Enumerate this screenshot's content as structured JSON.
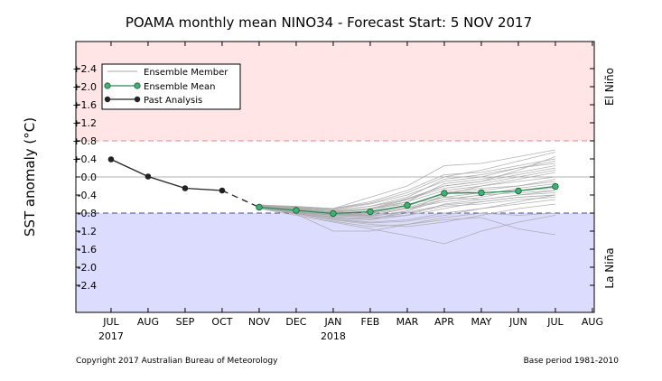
{
  "chart_data": {
    "type": "line",
    "title": "POAMA monthly mean NINO34 - Forecast Start: 5 NOV 2017",
    "ylabel": "SST anomaly (°C)",
    "xlabel": "",
    "ylim": [
      -3.0,
      3.0
    ],
    "xlim": [
      -0.95,
      13.05
    ],
    "months": [
      "JUL",
      "AUG",
      "SEP",
      "OCT",
      "NOV",
      "DEC",
      "JAN",
      "FEB",
      "MAR",
      "APR",
      "MAY",
      "JUN",
      "JUL",
      "AUG"
    ],
    "year_labels": [
      {
        "index": 0,
        "label": "2017"
      },
      {
        "index": 6,
        "label": "2018"
      }
    ],
    "yticks": [
      2.4,
      2.0,
      1.6,
      1.2,
      0.8,
      0.4,
      0.0,
      -0.4,
      -0.8,
      -1.2,
      -1.6,
      -2.0,
      -2.4
    ],
    "ytick_labels": [
      "+2.4",
      "+2.0",
      "+1.6",
      "+1.2",
      "+0.8",
      "+0.4",
      "0.0",
      "-0.4",
      "-0.8",
      "-1.2",
      "-1.6",
      "-2.0",
      "-2.4"
    ],
    "thresholds": {
      "el_nino": 0.8,
      "la_nina": -0.8
    },
    "regions": {
      "el_nino_label": "El Niño",
      "la_nina_label": "La Niña"
    },
    "colors": {
      "el_nino_fill": "#ffe5e5",
      "la_nina_fill": "#dcdcfe",
      "el_nino_line": "#e88a8a",
      "la_nina_line": "#4a4a9a",
      "ensemble_member": "#aaaaaa",
      "ensemble_mean": "#2e8b57",
      "ensemble_mean_marker": "#3cb371",
      "past_analysis": "#222222"
    },
    "legend": {
      "placement": "top-left",
      "entries": [
        "Ensemble Member",
        "Ensemble Mean",
        "Past Analysis"
      ]
    },
    "series": [
      {
        "name": "Past Analysis",
        "x": [
          0,
          1,
          2,
          3
        ],
        "values": [
          0.39,
          0.01,
          -0.25,
          -0.3
        ]
      },
      {
        "name": "Ensemble Mean",
        "x": [
          4,
          5,
          6,
          7,
          8,
          9,
          10,
          11,
          12
        ],
        "values": [
          -0.67,
          -0.74,
          -0.81,
          -0.77,
          -0.63,
          -0.36,
          -0.35,
          -0.31,
          -0.21
        ]
      }
    ],
    "ensemble_members": [
      [
        -0.65,
        -0.72,
        -0.8,
        -0.85,
        -0.7,
        -0.5,
        -0.4,
        -0.35,
        -0.3
      ],
      [
        -0.68,
        -0.8,
        -0.95,
        -1.05,
        -1.1,
        -1.0,
        -0.85,
        -0.7,
        -0.6
      ],
      [
        -0.62,
        -0.65,
        -0.7,
        -0.55,
        -0.3,
        0.05,
        0.1,
        0.25,
        0.4
      ],
      [
        -0.7,
        -0.85,
        -1.0,
        -1.15,
        -1.3,
        -1.48,
        -1.2,
        -1.0,
        -0.85
      ],
      [
        -0.66,
        -0.75,
        -0.9,
        -0.95,
        -0.75,
        -0.4,
        -0.2,
        -0.05,
        0.1
      ],
      [
        -0.64,
        -0.7,
        -0.75,
        -0.65,
        -0.5,
        -0.2,
        -0.1,
        0.05,
        0.2
      ],
      [
        -0.69,
        -0.78,
        -0.85,
        -0.9,
        -0.85,
        -0.7,
        -0.55,
        -0.45,
        -0.4
      ],
      [
        -0.63,
        -0.68,
        -0.72,
        -0.6,
        -0.4,
        -0.1,
        0.0,
        0.2,
        0.35
      ],
      [
        -0.67,
        -0.82,
        -1.2,
        -1.2,
        -1.05,
        -0.9,
        -0.8,
        -0.85,
        -0.8
      ],
      [
        -0.65,
        -0.72,
        -0.78,
        -0.7,
        -0.6,
        -0.45,
        -0.5,
        -0.4,
        -0.35
      ],
      [
        -0.62,
        -0.66,
        -0.7,
        -0.45,
        -0.2,
        0.25,
        0.3,
        0.45,
        0.6
      ],
      [
        -0.68,
        -0.76,
        -0.85,
        -0.85,
        -0.7,
        -0.55,
        -0.45,
        -0.3,
        -0.2
      ],
      [
        -0.66,
        -0.74,
        -0.82,
        -0.8,
        -0.65,
        -0.35,
        -0.25,
        -0.2,
        -0.1
      ],
      [
        -0.7,
        -0.8,
        -0.92,
        -1.0,
        -0.95,
        -0.8,
        -0.7,
        -0.6,
        -0.5
      ],
      [
        -0.64,
        -0.7,
        -0.76,
        -0.7,
        -0.55,
        -0.3,
        -0.2,
        -0.1,
        0.0
      ],
      [
        -0.67,
        -0.78,
        -0.88,
        -0.95,
        -0.85,
        -0.6,
        -0.5,
        -0.4,
        -0.3
      ],
      [
        -0.65,
        -0.73,
        -0.8,
        -0.75,
        -0.55,
        -0.15,
        -0.05,
        0.1,
        0.25
      ],
      [
        -0.69,
        -0.82,
        -0.98,
        -1.1,
        -1.05,
        -0.95,
        -0.9,
        -1.15,
        -1.28
      ],
      [
        -0.63,
        -0.69,
        -0.74,
        -0.65,
        -0.45,
        -0.05,
        0.05,
        0.2,
        0.3
      ],
      [
        -0.66,
        -0.76,
        -0.86,
        -0.88,
        -0.75,
        -0.5,
        -0.4,
        -0.25,
        -0.15
      ],
      [
        -0.68,
        -0.79,
        -0.9,
        -0.92,
        -0.8,
        -0.65,
        -0.6,
        -0.5,
        -0.45
      ],
      [
        -0.64,
        -0.71,
        -0.78,
        -0.72,
        -0.5,
        -0.25,
        -0.15,
        0.0,
        0.15
      ],
      [
        -0.67,
        -0.77,
        -0.84,
        -0.82,
        -0.68,
        -0.45,
        -0.35,
        -0.3,
        -0.25
      ],
      [
        -0.65,
        -0.74,
        -0.83,
        -0.86,
        -0.78,
        -0.62,
        -0.55,
        -0.45,
        -0.4
      ],
      [
        -0.66,
        -0.73,
        -0.79,
        -0.7,
        -0.48,
        -0.2,
        -0.1,
        0.15,
        0.45
      ],
      [
        -0.69,
        -0.81,
        -0.94,
        -1.02,
        -0.98,
        -0.85,
        -0.7,
        -0.55,
        -0.4
      ],
      [
        -0.63,
        -0.67,
        -0.71,
        -0.58,
        -0.35,
        0.0,
        0.15,
        0.35,
        0.55
      ],
      [
        -0.67,
        -0.76,
        -0.83,
        -0.8,
        -0.62,
        -0.38,
        -0.3,
        -0.2,
        -0.05
      ]
    ],
    "footer_left": "Copyright 2017 Australian Bureau of Meteorology",
    "footer_right": "Base period 1981-2010"
  }
}
